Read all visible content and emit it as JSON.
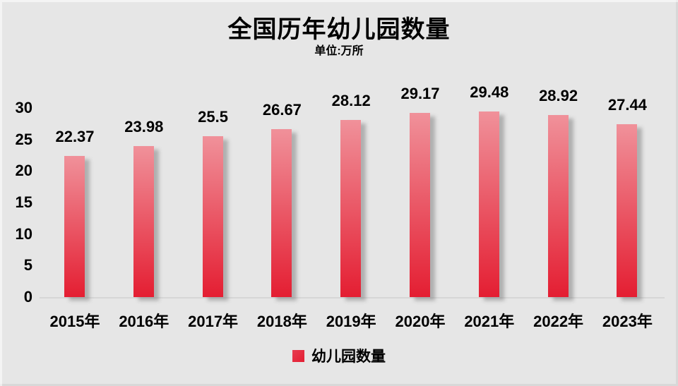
{
  "page": {
    "background_color": "#e6e6e6",
    "text_color": "#000000"
  },
  "chart_data": {
    "type": "bar",
    "title": "全国历年幼儿园数量",
    "subtitle": "单位:万所",
    "categories": [
      "2015年",
      "2016年",
      "2017年",
      "2018年",
      "2019年",
      "2020年",
      "2021年",
      "2022年",
      "2023年"
    ],
    "series": [
      {
        "name": "幼儿园数量",
        "values": [
          22.37,
          23.98,
          25.5,
          26.67,
          28.12,
          29.17,
          29.48,
          28.92,
          27.44
        ]
      }
    ],
    "xlabel": "",
    "ylabel": "",
    "ylim": [
      0,
      30
    ],
    "yticks": [
      0,
      5,
      10,
      15,
      20,
      25,
      30
    ],
    "grid": false,
    "data_labels_shown": true,
    "legend": {
      "position": "bottom",
      "entries": [
        {
          "label": "幼儿园数量",
          "color": "#e73c50"
        }
      ]
    },
    "bar_color_top": "#f0919a",
    "bar_color_bottom": "#e41e32"
  }
}
